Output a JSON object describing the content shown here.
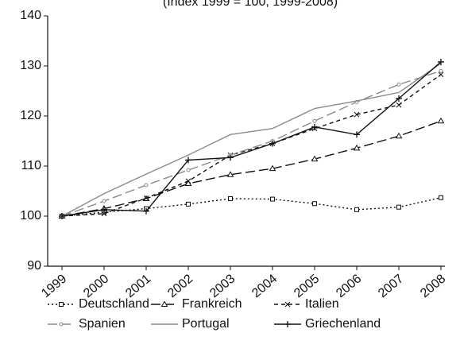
{
  "chart_data": {
    "type": "line",
    "subtitle": "(Index 1999 = 100, 1999-2008)",
    "categories": [
      "1999",
      "2000",
      "2001",
      "2002",
      "2003",
      "2004",
      "2005",
      "2006",
      "2007",
      "2008"
    ],
    "ylim": [
      90,
      140
    ],
    "yticks": [
      90,
      100,
      110,
      120,
      130,
      140
    ],
    "grid": false,
    "legend": "bottom",
    "series": [
      {
        "name": "Deutschland",
        "color": "#111111",
        "line_style": "dotted",
        "marker": "square",
        "values": [
          100,
          100.8,
          101.5,
          102.4,
          103.5,
          103.4,
          102.5,
          101.3,
          101.8,
          103.7
        ]
      },
      {
        "name": "Frankreich",
        "color": "#111111",
        "line_style": "long-dash",
        "marker": "triangle",
        "values": [
          100,
          101.5,
          103.5,
          106.5,
          108.3,
          109.5,
          111.4,
          113.6,
          116,
          119
        ]
      },
      {
        "name": "Italien",
        "color": "#111111",
        "line_style": "short-dash",
        "marker": "x",
        "values": [
          100,
          100.5,
          103.6,
          107,
          112.2,
          114.5,
          117.5,
          120.3,
          122.2,
          128.3
        ]
      },
      {
        "name": "Spanien",
        "color": "#8a8a8a",
        "line_style": "long-dash",
        "marker": "circle",
        "values": [
          100,
          103,
          106.2,
          109.2,
          112.2,
          115,
          119,
          122.8,
          126.3,
          129
        ]
      },
      {
        "name": "Portugal",
        "color": "#8a8a8a",
        "line_style": "solid",
        "marker": "none",
        "values": [
          100,
          104.5,
          108.4,
          112.2,
          116.3,
          117.5,
          121.5,
          123,
          124.7,
          130.5
        ]
      },
      {
        "name": "Griechenland",
        "color": "#111111",
        "line_style": "solid",
        "marker": "plus",
        "values": [
          100,
          101.3,
          101,
          111.2,
          111.7,
          114.5,
          117.8,
          116.3,
          123.5,
          130.8
        ]
      }
    ]
  }
}
